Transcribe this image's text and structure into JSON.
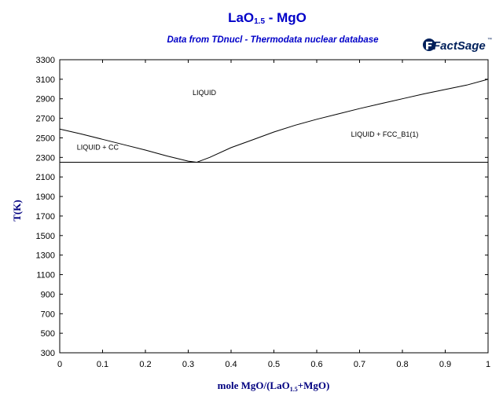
{
  "chart_data": {
    "type": "line",
    "title_main": "LaO",
    "title_sub": "1.5",
    "title_rest": " - MgO",
    "subtitle": "Data from TDnucl - Thermodata nuclear database",
    "xlabel_prefix": "mole MgO/(LaO",
    "xlabel_sub": "1.5",
    "xlabel_suffix": "+MgO)",
    "ylabel": "T(K)",
    "xlim": [
      0,
      1
    ],
    "ylim": [
      300,
      3300
    ],
    "xticks": [
      "0",
      "0.1",
      "0.2",
      "0.3",
      "0.4",
      "0.5",
      "0.6",
      "0.7",
      "0.8",
      "0.9",
      "1"
    ],
    "yticks": [
      "300",
      "500",
      "700",
      "900",
      "1100",
      "1300",
      "1500",
      "1700",
      "1900",
      "2100",
      "2300",
      "2500",
      "2700",
      "2900",
      "3100",
      "3300"
    ],
    "series": [
      {
        "x": [
          0,
          0.05,
          0.1,
          0.15,
          0.2,
          0.25,
          0.3,
          0.32
        ],
        "y": [
          2590,
          2540,
          2485,
          2430,
          2375,
          2315,
          2262,
          2250
        ]
      },
      {
        "x": [
          0.32,
          0.35,
          0.4,
          0.45,
          0.5,
          0.55,
          0.6,
          0.65,
          0.7,
          0.75,
          0.8,
          0.85,
          0.9,
          0.95,
          1.0
        ],
        "y": [
          2250,
          2300,
          2400,
          2480,
          2560,
          2630,
          2690,
          2745,
          2800,
          2850,
          2900,
          2950,
          2995,
          3040,
          3100
        ]
      },
      {
        "x": [
          0,
          1
        ],
        "y": [
          2250,
          2250
        ]
      }
    ],
    "annotations": [
      {
        "text": "LIQUID",
        "x": 0.31,
        "y": 2940
      },
      {
        "text": "LIQUID + CC",
        "x": 0.04,
        "y": 2380
      },
      {
        "text": "LIQUID + FCC_B1(1)",
        "x": 0.68,
        "y": 2510
      }
    ]
  },
  "logo": {
    "text": "FactSage",
    "mark": "™",
    "color": "#00205b"
  }
}
